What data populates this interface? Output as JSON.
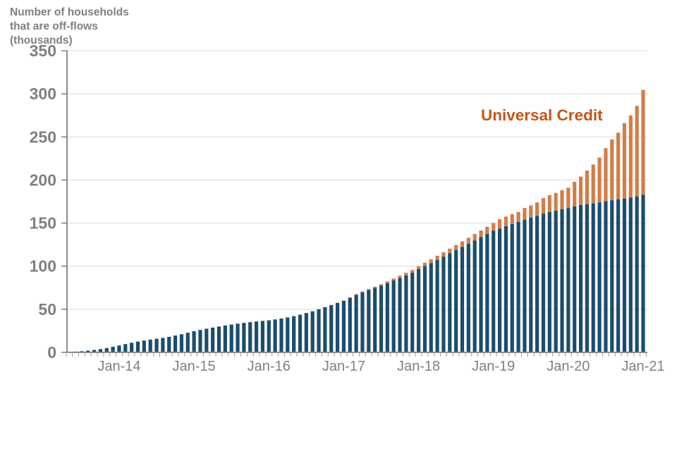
{
  "chart": {
    "title_lines": [
      "Number of households",
      "that are off-flows",
      "(thousands)"
    ],
    "annotation": "Universal Credit"
  },
  "colors": {
    "bar_primary": "#1C4D6E",
    "bar_secondary": "#D07E4A",
    "annotation_text": "#C5551A",
    "axis": "#808080",
    "grid": "#D9D9D9",
    "tick": "#9B9B9B",
    "axis_label": "#808080",
    "title_text": "#7F7F7F"
  },
  "chart_data": {
    "type": "bar",
    "stacked": true,
    "title": "Number of households that are off-flows (thousands)",
    "xlabel": "",
    "ylabel": "",
    "ylim": [
      0,
      350
    ],
    "ytick_interval": 50,
    "grid": true,
    "legend_annotation": "Universal Credit",
    "x": [
      "May-13",
      "Jun-13",
      "Jul-13",
      "Aug-13",
      "Sep-13",
      "Oct-13",
      "Nov-13",
      "Dec-13",
      "Jan-14",
      "Feb-14",
      "Mar-14",
      "Apr-14",
      "May-14",
      "Jun-14",
      "Jul-14",
      "Aug-14",
      "Sep-14",
      "Oct-14",
      "Nov-14",
      "Dec-14",
      "Jan-15",
      "Feb-15",
      "Mar-15",
      "Apr-15",
      "May-15",
      "Jun-15",
      "Jul-15",
      "Aug-15",
      "Sep-15",
      "Oct-15",
      "Nov-15",
      "Dec-15",
      "Jan-16",
      "Feb-16",
      "Mar-16",
      "Apr-16",
      "May-16",
      "Jun-16",
      "Jul-16",
      "Aug-16",
      "Sep-16",
      "Oct-16",
      "Nov-16",
      "Dec-16",
      "Jan-17",
      "Feb-17",
      "Mar-17",
      "Apr-17",
      "May-17",
      "Jun-17",
      "Jul-17",
      "Aug-17",
      "Sep-17",
      "Oct-17",
      "Nov-17",
      "Dec-17",
      "Jan-18",
      "Feb-18",
      "Mar-18",
      "Apr-18",
      "May-18",
      "Jun-18",
      "Jul-18",
      "Aug-18",
      "Sep-18",
      "Oct-18",
      "Nov-18",
      "Dec-18",
      "Jan-19",
      "Feb-19",
      "Mar-19",
      "Apr-19",
      "May-19",
      "Jun-19",
      "Jul-19",
      "Aug-19",
      "Sep-19",
      "Oct-19",
      "Nov-19",
      "Dec-19",
      "Jan-20",
      "Feb-20",
      "Mar-20",
      "Apr-20",
      "May-20",
      "Jun-20",
      "Jul-20",
      "Aug-20",
      "Sep-20",
      "Oct-20",
      "Nov-20",
      "Dec-20",
      "Jan-21"
    ],
    "xticks_shown": [
      "Jan-14",
      "Jan-15",
      "Jan-16",
      "Jan-17",
      "Jan-18",
      "Jan-19",
      "Jan-20",
      "Jan-21"
    ],
    "series": [
      {
        "name": "",
        "values": [
          0.5,
          0.9,
          1.4,
          2.0,
          2.8,
          3.8,
          5.0,
          6.5,
          8.0,
          9.6,
          11.1,
          12.5,
          13.7,
          14.8,
          15.8,
          16.8,
          18.0,
          19.5,
          21.0,
          22.8,
          24.5,
          26.0,
          27.4,
          28.7,
          30.0,
          31.2,
          32.3,
          33.3,
          34.2,
          35.0,
          35.8,
          36.5,
          37.2,
          38.2,
          39.3,
          40.5,
          42.0,
          43.7,
          45.6,
          47.7,
          50.0,
          52.4,
          54.8,
          57.3,
          59.8,
          63.3,
          66.7,
          69.7,
          72.3,
          74.8,
          77.4,
          80.4,
          83.4,
          86.4,
          89.4,
          92.4,
          96.5,
          100.1,
          103.7,
          107.4,
          111.1,
          114.9,
          118.6,
          122.3,
          126.0,
          129.9,
          133.7,
          137.5,
          141.3,
          143.5,
          146.5,
          149.0,
          151.5,
          154.0,
          156.5,
          158.5,
          161.0,
          163.0,
          164.5,
          166.0,
          167.5,
          169.5,
          171.0,
          172.0,
          173.0,
          174.0,
          175.5,
          176.5,
          177.5,
          178.5,
          179.5,
          181.0,
          183.0
        ]
      },
      {
        "name": "Universal Credit",
        "values": [
          0,
          0,
          0,
          0,
          0,
          0,
          0,
          0,
          0,
          0,
          0,
          0,
          0,
          0,
          0,
          0,
          0,
          0,
          0,
          0,
          0,
          0,
          0,
          0,
          0,
          0,
          0,
          0,
          0,
          0,
          0,
          0,
          0,
          0,
          0,
          0,
          0,
          0,
          0,
          0,
          0,
          0,
          0.2,
          0.3,
          0.4,
          0.6,
          0.8,
          1.0,
          1.2,
          1.4,
          1.7,
          2.0,
          2.3,
          2.6,
          2.9,
          3.2,
          3.5,
          3.9,
          4.3,
          4.7,
          5.1,
          5.5,
          6.0,
          6.5,
          7.0,
          7.4,
          7.8,
          8.2,
          8.7,
          11.0,
          11.0,
          11.5,
          11.5,
          13.5,
          14.0,
          15.5,
          18.0,
          19.5,
          20.5,
          22.0,
          23.5,
          28.5,
          33.0,
          39.0,
          45.0,
          52.0,
          61.5,
          70.5,
          77.5,
          87.5,
          95.5,
          105.0,
          121.5
        ]
      }
    ]
  }
}
